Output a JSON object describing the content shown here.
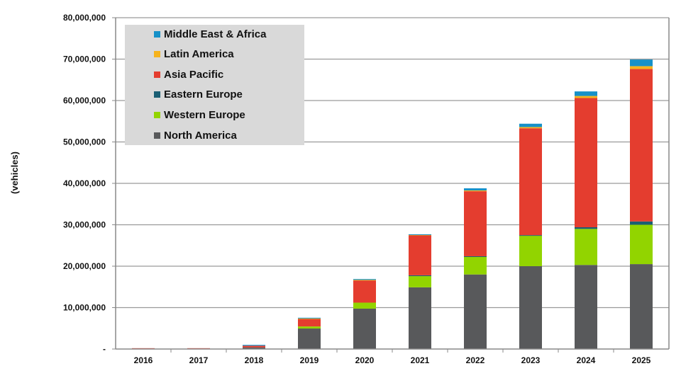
{
  "chart_data": {
    "type": "bar",
    "stacked": true,
    "title": "",
    "xlabel": "",
    "ylabel": "(vehicles)",
    "ylim": [
      0,
      80000000
    ],
    "yticks": [
      0,
      10000000,
      20000000,
      30000000,
      40000000,
      50000000,
      60000000,
      70000000,
      80000000
    ],
    "ytick_labels": [
      "-",
      "10,000,000",
      "20,000,000",
      "30,000,000",
      "40,000,000",
      "50,000,000",
      "60,000,000",
      "70,000,000",
      "80,000,000"
    ],
    "grid": true,
    "legend_position": "top-left",
    "categories": [
      "2016",
      "2017",
      "2018",
      "2019",
      "2020",
      "2021",
      "2022",
      "2023",
      "2024",
      "2025"
    ],
    "series": [
      {
        "name": "North America",
        "color": "#58595b",
        "values": [
          0,
          0,
          400000,
          4950000,
          9750000,
          14900000,
          18000000,
          20000000,
          20300000,
          20500000
        ]
      },
      {
        "name": "Western Europe",
        "color": "#92d400",
        "values": [
          0,
          0,
          0,
          500000,
          1450000,
          2700000,
          4300000,
          7400000,
          8700000,
          9500000
        ]
      },
      {
        "name": "Eastern Europe",
        "color": "#1a5e73",
        "values": [
          0,
          0,
          0,
          0,
          0,
          200000,
          100000,
          100000,
          400000,
          800000
        ]
      },
      {
        "name": "Asia Pacific",
        "color": "#e43d2f",
        "values": [
          200000,
          200000,
          400000,
          1900000,
          5400000,
          9700000,
          15700000,
          25800000,
          31200000,
          36800000
        ]
      },
      {
        "name": "Latin America",
        "color": "#f6b31d",
        "values": [
          0,
          0,
          0,
          50000,
          100000,
          100000,
          200000,
          300000,
          500000,
          700000
        ]
      },
      {
        "name": "Middle East & Africa",
        "color": "#1691c8",
        "values": [
          0,
          0,
          200000,
          150000,
          200000,
          100000,
          500000,
          800000,
          1100000,
          1600000
        ]
      }
    ],
    "legend_order": [
      "Middle East & Africa",
      "Latin America",
      "Asia Pacific",
      "Eastern Europe",
      "Western Europe",
      "North America"
    ]
  }
}
